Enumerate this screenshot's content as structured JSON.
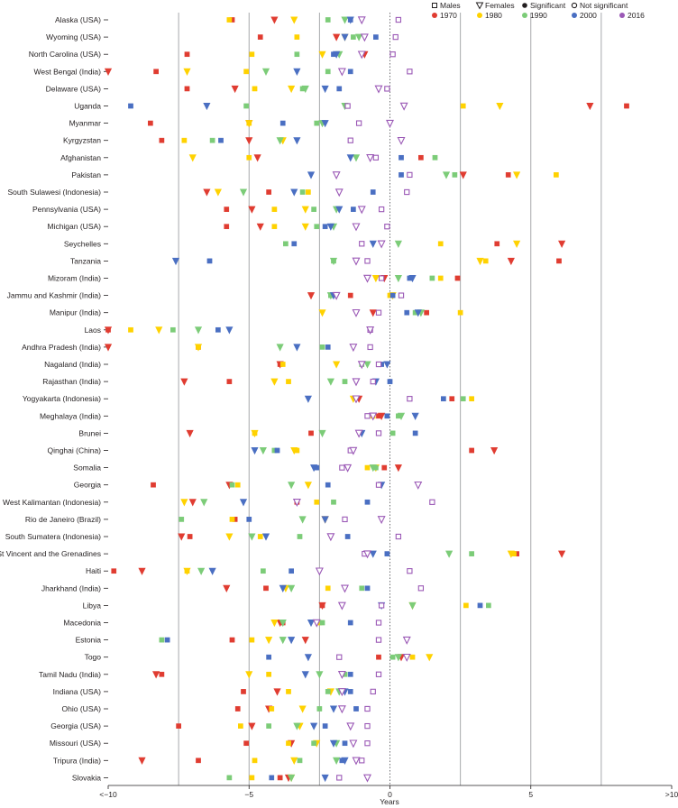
{
  "chart_data": {
    "type": "scatter",
    "xlabel": "Years",
    "xlim": [
      -10,
      10
    ],
    "x_ticks": [
      -10,
      -5,
      0,
      5,
      10
    ],
    "x_tick_labels": [
      "<−10",
      "−5",
      "0",
      "5",
      ">10"
    ],
    "gridlines": [
      -7.5,
      -5,
      -2.5,
      2.5,
      5,
      7.5
    ],
    "zero_line": "dotted",
    "legend": {
      "placement": "top-right",
      "shape_items": [
        {
          "label": "Males",
          "marker": "square"
        },
        {
          "label": "Females",
          "marker": "triangle"
        },
        {
          "label": "Significant",
          "marker": "filled-circle"
        },
        {
          "label": "Not significant",
          "marker": "open-circle"
        }
      ],
      "year_items": [
        {
          "label": "1970",
          "color": "#e03c31"
        },
        {
          "label": "1980",
          "color": "#ffd200"
        },
        {
          "label": "1990",
          "color": "#7ccc78"
        },
        {
          "label": "2000",
          "color": "#4a6fc2"
        },
        {
          "label": "2016",
          "color": "#9b59b6"
        }
      ]
    },
    "categories": [
      "Alaska (USA)",
      "Wyoming (USA)",
      "North Carolina (USA)",
      "West Bengal (India)",
      "Delaware (USA)",
      "Uganda",
      "Myanmar",
      "Kyrgyzstan",
      "Afghanistan",
      "Pakistan",
      "South Sulawesi (Indonesia)",
      "Pennsylvania (USA)",
      "Michigan (USA)",
      "Seychelles",
      "Tanzania",
      "Mizoram (India)",
      "Jammu and Kashmir (India)",
      "Manipur (India)",
      "Laos",
      "Andhra Pradesh (India)",
      "Nagaland (India)",
      "Rajasthan (India)",
      "Yogyakarta (Indonesia)",
      "Meghalaya (India)",
      "Brunei",
      "Qinghai (China)",
      "Somalia",
      "Georgia",
      "West Kalimantan (Indonesia)",
      "Rio de Janeiro (Brazil)",
      "South Sumatera (Indonesia)",
      "St Vincent and the Grenadines",
      "Haiti",
      "Jharkhand (India)",
      "Libya",
      "Macedonia",
      "Estonia",
      "Togo",
      "Tamil Nadu (India)",
      "Indiana (USA)",
      "Ohio (USA)",
      "Georgia (USA)",
      "Missouri (USA)",
      "Tripura (India)",
      "Slovakia"
    ],
    "series": [
      {
        "name": "1970",
        "sex": "male",
        "significant": true,
        "values": [
          -5.6,
          -4.6,
          -7.2,
          -8.3,
          -7.2,
          8.4,
          -8.5,
          -8.1,
          1.1,
          4.2,
          -4.3,
          -5.8,
          -5.8,
          3.8,
          6.0,
          2.4,
          -1.4,
          1.3,
          -10.0,
          -6.8,
          -3.9,
          -5.7,
          2.2,
          -0.4,
          -2.8,
          2.9,
          -0.2,
          -8.4,
          -3.3,
          -5.5,
          -7.1,
          4.5,
          -9.8,
          -4.4,
          -2.4,
          -3.8,
          -5.6,
          -0.4,
          -8.1,
          -5.2,
          -5.4,
          -7.5,
          -5.1,
          -6.8,
          -3.9
        ]
      },
      {
        "name": "1970",
        "sex": "female",
        "significant": true,
        "values": [
          -4.1,
          -1.9,
          -0.9,
          -10.0,
          -5.5,
          7.1,
          -5.0,
          -5.0,
          -4.7,
          2.6,
          -6.5,
          -4.9,
          -4.6,
          6.1,
          4.3,
          -0.2,
          -2.8,
          -0.6,
          -10.0,
          -10.0,
          -3.9,
          -7.3,
          -1.1,
          -0.3,
          -7.1,
          3.7,
          0.3,
          -5.7,
          -7.0,
          -2.3,
          -7.4,
          6.1,
          -8.8,
          -5.8,
          -2.4,
          -3.9,
          -3.0,
          0.4,
          -8.3,
          -4.0,
          -4.3,
          -4.9,
          -3.5,
          -8.8,
          -3.6
        ]
      },
      {
        "name": "1980",
        "sex": "male",
        "significant": true,
        "values": [
          -5.7,
          -3.3,
          -4.9,
          -5.1,
          -4.8,
          2.6,
          -5.0,
          -7.3,
          -5.0,
          5.9,
          -2.9,
          -4.1,
          -4.1,
          1.8,
          3.4,
          1.8,
          0.0,
          2.5,
          -9.2,
          -6.8,
          -3.8,
          -3.6,
          2.9,
          -0.6,
          -4.8,
          -3.3,
          -0.8,
          -5.4,
          -2.6,
          -5.6,
          -4.6,
          4.4,
          -7.2,
          -2.2,
          2.7,
          -2.5,
          -4.9,
          0.8,
          -4.3,
          -3.6,
          -4.2,
          -5.3,
          -3.6,
          -4.8,
          -4.9
        ]
      },
      {
        "name": "1980",
        "sex": "female",
        "significant": true,
        "values": [
          -3.4,
          -1.6,
          -2.4,
          -7.2,
          -3.5,
          3.9,
          -5.0,
          -3.8,
          -7.0,
          4.5,
          -6.1,
          -3.0,
          -3.0,
          4.5,
          3.2,
          -0.5,
          0.1,
          -2.4,
          -8.2,
          -6.8,
          -1.9,
          -4.1,
          -1.3,
          -0.6,
          -4.8,
          -3.4,
          -0.5,
          -2.9,
          -7.3,
          -2.3,
          -5.7,
          4.3,
          -7.2,
          -3.7,
          0.8,
          -4.1,
          -4.3,
          1.4,
          -5.0,
          -2.1,
          -3.1,
          -3.2,
          -2.6,
          -3.4,
          -3.5
        ]
      },
      {
        "name": "1990",
        "sex": "male",
        "significant": true,
        "values": [
          -2.2,
          -1.3,
          -3.3,
          -2.2,
          -3.1,
          -5.1,
          -2.6,
          -6.3,
          1.6,
          2.3,
          -3.1,
          -2.7,
          -2.6,
          -3.7,
          -2.0,
          1.5,
          -2.1,
          0.9,
          -7.7,
          -2.4,
          -1.0,
          -1.6,
          2.6,
          0.3,
          0.1,
          -4.1,
          -0.5,
          -5.6,
          -2.0,
          -7.4,
          -3.2,
          2.9,
          -4.5,
          -1.0,
          3.5,
          -2.4,
          -8.1,
          0.1,
          -1.6,
          -2.2,
          -2.5,
          -4.3,
          -2.7,
          -3.2,
          -5.7
        ]
      },
      {
        "name": "1990",
        "sex": "female",
        "significant": true,
        "values": [
          -1.6,
          -1.1,
          -1.8,
          -4.4,
          -3.0,
          -1.6,
          -2.4,
          -3.9,
          -1.2,
          2.0,
          -5.2,
          -1.9,
          -2.0,
          0.3,
          -2.0,
          0.3,
          -2.1,
          1.1,
          -6.8,
          -3.9,
          -0.8,
          -2.1,
          -1.2,
          0.4,
          -2.4,
          -4.5,
          -0.6,
          -3.5,
          -6.6,
          -3.1,
          -4.9,
          2.1,
          -6.7,
          -3.5,
          0.8,
          -3.8,
          -3.8,
          0.3,
          -2.5,
          -1.8,
          -1.7,
          -3.3,
          -1.9,
          -1.9,
          -3.5
        ]
      },
      {
        "name": "2000",
        "sex": "male",
        "significant": true,
        "values": [
          -1.4,
          -0.5,
          -2.0,
          -1.4,
          -1.8,
          -9.2,
          -3.8,
          -6.0,
          0.4,
          0.4,
          -0.6,
          -1.3,
          -2.3,
          -3.4,
          -6.4,
          0.7,
          0.1,
          0.6,
          -6.1,
          -2.2,
          -0.3,
          0.0,
          1.9,
          -0.1,
          0.9,
          -4.0,
          -2.6,
          -2.2,
          -0.8,
          -5.0,
          -1.5,
          -0.1,
          -3.5,
          -0.8,
          3.2,
          -1.4,
          -7.9,
          -4.3,
          -1.4,
          -1.4,
          -1.2,
          -2.3,
          -1.6,
          -1.7,
          -4.2
        ]
      },
      {
        "name": "2000",
        "sex": "female",
        "significant": true,
        "values": [
          -1.4,
          -1.6,
          -1.9,
          -3.3,
          -2.3,
          -6.5,
          -2.3,
          -3.3,
          -1.4,
          -2.8,
          -3.4,
          -1.8,
          -2.1,
          -0.6,
          -7.6,
          0.8,
          -2.0,
          1.0,
          -5.7,
          -3.3,
          -0.1,
          -0.5,
          -2.9,
          0.9,
          -1.0,
          -4.8,
          -2.7,
          -0.3,
          -5.2,
          -2.3,
          -4.4,
          -0.6,
          -6.3,
          -3.8,
          -0.3,
          -2.8,
          -3.5,
          -2.9,
          -3.0,
          -1.6,
          -2.0,
          -2.7,
          -2.0,
          -1.6,
          -2.3
        ]
      },
      {
        "name": "2016",
        "sex": "male",
        "significant": false,
        "values": [
          0.3,
          0.2,
          0.1,
          0.7,
          -0.1,
          -1.5,
          -1.1,
          -1.4,
          -0.5,
          0.7,
          0.6,
          -0.3,
          -0.1,
          -1.0,
          -0.8,
          -0.3,
          0.4,
          -0.4,
          -0.7,
          -0.7,
          -0.4,
          -0.6,
          0.7,
          -0.8,
          -0.4,
          -1.4,
          -1.7,
          -0.4,
          1.5,
          -1.6,
          0.3,
          -0.9,
          0.7,
          1.1,
          -0.3,
          -0.4,
          -0.4,
          -1.8,
          -0.4,
          -0.6,
          -0.8,
          -0.8,
          -0.8,
          -1.0,
          -1.8
        ]
      },
      {
        "name": "2016",
        "sex": "female",
        "significant": false,
        "values": [
          -1.0,
          -0.9,
          -1.0,
          -1.7,
          -0.4,
          0.5,
          0.0,
          0.4,
          -0.7,
          -1.9,
          -1.8,
          -1.0,
          -1.2,
          -0.3,
          -1.2,
          -0.8,
          -1.9,
          -1.2,
          -0.7,
          -1.3,
          -1.0,
          -1.2,
          -1.2,
          -0.6,
          -1.1,
          -1.3,
          -1.5,
          1.0,
          -3.3,
          -0.3,
          -2.1,
          -0.8,
          -2.5,
          -1.6,
          -1.7,
          -2.6,
          0.6,
          0.6,
          -1.7,
          -1.7,
          -1.7,
          -1.4,
          -1.3,
          -1.2,
          -0.8
        ]
      }
    ]
  }
}
